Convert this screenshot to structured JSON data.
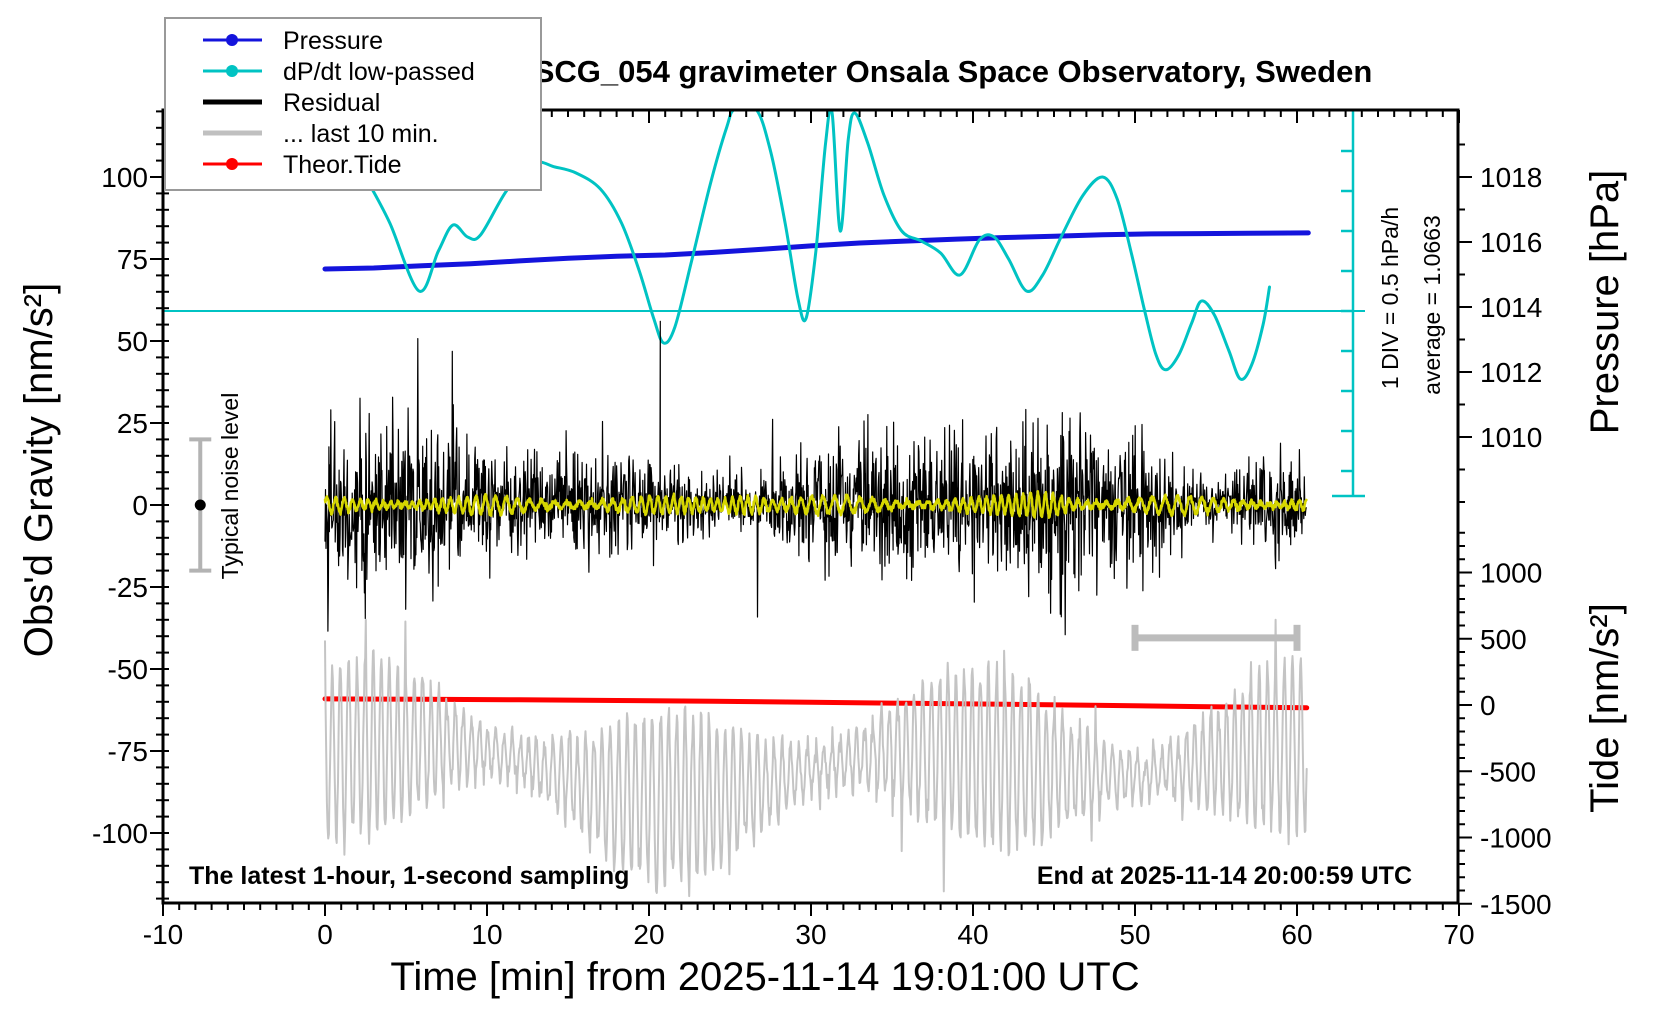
{
  "title": "SCG_054 gravimeter Onsala Space Observatory, Sweden",
  "annotations": {
    "sampling_note": "The latest 1-hour, 1-second sampling",
    "end_time_note": "End at 2025-11-14 20:00:59 UTC",
    "noise_level_label": "Typical noise level",
    "div_scale_label": "1 DIV = 0.5 hPa/h",
    "average_label": "average = 1.0663"
  },
  "legend": {
    "entries": [
      {
        "label": "Pressure",
        "color": "#1414dc",
        "style": "line-dot"
      },
      {
        "label": "dP/dt low-passed",
        "color": "#00c3c3",
        "style": "line-dot"
      },
      {
        "label": "Residual",
        "color": "#000000",
        "style": "line-thick"
      },
      {
        "label": "... last 10 min.",
        "color": "#c0c0c0",
        "style": "line-thick"
      },
      {
        "label": "Theor.Tide",
        "color": "#ff0000",
        "style": "line-dot"
      }
    ]
  },
  "axes": {
    "x": {
      "label": "Time [min] from 2025-11-14 19:01:00 UTC",
      "min": -10,
      "max": 70,
      "major_ticks": [
        -10,
        0,
        10,
        20,
        30,
        40,
        50,
        60,
        70
      ],
      "minor_step": 1
    },
    "gravity": {
      "label": "Obs'd Gravity [nm/s²]",
      "major_ticks": [
        -100,
        -75,
        -50,
        -25,
        0,
        25,
        50,
        75,
        100
      ],
      "minor_step": 5
    },
    "pressure": {
      "label": "Pressure [hPa]",
      "major_ticks": [
        1010,
        1012,
        1014,
        1016,
        1018
      ],
      "minor_step": 1
    },
    "tide": {
      "label": "Tide [nm/s²]",
      "major_ticks": [
        -1500,
        -1000,
        -500,
        0,
        500,
        1000
      ],
      "minor_step": 100
    }
  },
  "scale_markers": {
    "noise_bar": {
      "at_minute": -7.7,
      "center_gravity": 0,
      "half_range_gravity": 20,
      "label": "Typical noise level"
    },
    "ten_min_bracket": {
      "from_minute": 50,
      "to_minute": 60,
      "at_gravity": -40.5
    },
    "div_bar": {
      "divisions": 10,
      "div_value": "0.5 hPa/h",
      "zero_div_index": 5
    }
  },
  "chart_data": {
    "type": "line",
    "x_unit": "minutes from 2025-11-14 19:01:00 UTC",
    "series": [
      {
        "name": "Pressure",
        "axis": "pressure",
        "color": "#1414dc",
        "width": 5,
        "points": [
          [
            0,
            1015.17
          ],
          [
            3,
            1015.2
          ],
          [
            6,
            1015.27
          ],
          [
            9,
            1015.33
          ],
          [
            12,
            1015.42
          ],
          [
            15,
            1015.5
          ],
          [
            18,
            1015.56
          ],
          [
            21,
            1015.6
          ],
          [
            24,
            1015.68
          ],
          [
            27,
            1015.78
          ],
          [
            30,
            1015.88
          ],
          [
            33,
            1015.97
          ],
          [
            36,
            1016.03
          ],
          [
            39,
            1016.09
          ],
          [
            42,
            1016.14
          ],
          [
            45,
            1016.18
          ],
          [
            48,
            1016.22
          ],
          [
            51,
            1016.25
          ],
          [
            54,
            1016.26
          ],
          [
            57,
            1016.27
          ],
          [
            60.7,
            1016.28
          ]
        ]
      },
      {
        "name": "dP/dt low-passed",
        "axis": "div",
        "color": "#00c3c3",
        "width": 3,
        "smooth": true,
        "points": [
          [
            2.7,
            3.2
          ],
          [
            4.0,
            2.2
          ],
          [
            5.8,
            0.5
          ],
          [
            7.0,
            1.5
          ],
          [
            7.9,
            2.15
          ],
          [
            8.8,
            1.85
          ],
          [
            9.6,
            1.9
          ],
          [
            11.2,
            3.0
          ],
          [
            12.8,
            3.7
          ],
          [
            14.2,
            3.6
          ],
          [
            15.5,
            3.45
          ],
          [
            17.0,
            3.05
          ],
          [
            18.3,
            2.2
          ],
          [
            19.4,
            1.0
          ],
          [
            20.3,
            -0.2
          ],
          [
            20.9,
            -0.8
          ],
          [
            21.6,
            -0.4
          ],
          [
            22.6,
            1.2
          ],
          [
            23.8,
            3.2
          ],
          [
            24.8,
            4.6
          ],
          [
            25.3,
            5.05
          ],
          [
            26.6,
            5.05
          ],
          [
            27.5,
            4.0
          ],
          [
            28.4,
            2.2
          ],
          [
            29.2,
            0.3
          ],
          [
            29.7,
            -0.18
          ],
          [
            30.3,
            1.5
          ],
          [
            30.9,
            4.2
          ],
          [
            31.3,
            4.95
          ],
          [
            31.8,
            2.0
          ],
          [
            32.3,
            4.3
          ],
          [
            32.7,
            4.95
          ],
          [
            33.5,
            4.2
          ],
          [
            34.5,
            2.9
          ],
          [
            35.6,
            2.0
          ],
          [
            36.8,
            1.75
          ],
          [
            38.0,
            1.45
          ],
          [
            39.2,
            0.9
          ],
          [
            40.4,
            1.78
          ],
          [
            41.3,
            1.85
          ],
          [
            42.2,
            1.3
          ],
          [
            43.3,
            0.5
          ],
          [
            44.3,
            0.9
          ],
          [
            45.5,
            1.9
          ],
          [
            46.8,
            2.9
          ],
          [
            48.0,
            3.35
          ],
          [
            48.9,
            2.8
          ],
          [
            49.8,
            1.4
          ],
          [
            50.6,
            0.0
          ],
          [
            51.3,
            -1.1
          ],
          [
            51.9,
            -1.47
          ],
          [
            52.7,
            -1.1
          ],
          [
            53.5,
            -0.3
          ],
          [
            54.1,
            0.25
          ],
          [
            54.9,
            -0.1
          ],
          [
            55.8,
            -1.0
          ],
          [
            56.5,
            -1.7
          ],
          [
            57.2,
            -1.35
          ],
          [
            57.9,
            -0.35
          ],
          [
            58.3,
            0.6
          ]
        ]
      },
      {
        "name": "Theor.Tide",
        "axis": "tide",
        "color": "#ff0000",
        "width": 5,
        "points": [
          [
            0,
            46
          ],
          [
            6,
            43
          ],
          [
            12,
            39
          ],
          [
            18,
            34
          ],
          [
            24,
            28
          ],
          [
            30,
            21
          ],
          [
            36,
            13
          ],
          [
            42,
            5
          ],
          [
            48,
            -3
          ],
          [
            54,
            -12
          ],
          [
            60.6,
            -21
          ]
        ]
      },
      {
        "name": "Residual",
        "axis": "gravity",
        "color": "#000000",
        "width": 1.2,
        "noise": {
          "t_start": 0,
          "t_end": 60.6,
          "dt": 0.03,
          "sigma": 10,
          "peak_max": 56,
          "peak_min": -46,
          "seed": 42
        }
      },
      {
        "name": "Residual low-passed",
        "axis": "gravity",
        "color": "#d6d600",
        "width": 2.5,
        "noise": {
          "t_start": 0,
          "t_end": 60.6,
          "dt": 0.02,
          "amp": 2.0,
          "burst_centers": [
            25.8,
            44.5
          ],
          "burst_amp": 1.8,
          "seed": 7
        }
      },
      {
        "name": "... last 10 min. (magnified)",
        "axis": "gravity",
        "color": "#c4c4c4",
        "width": 2,
        "noise": {
          "t_start": 0,
          "t_end": 60.6,
          "dt": 0.04,
          "center": -80,
          "amp": 22,
          "min": -122,
          "max": -35,
          "seed": 99
        }
      }
    ],
    "reference_lines": [
      {
        "name": "dP/dt zero line",
        "axis": "div",
        "value": 0,
        "color": "#00c3c3"
      }
    ]
  }
}
